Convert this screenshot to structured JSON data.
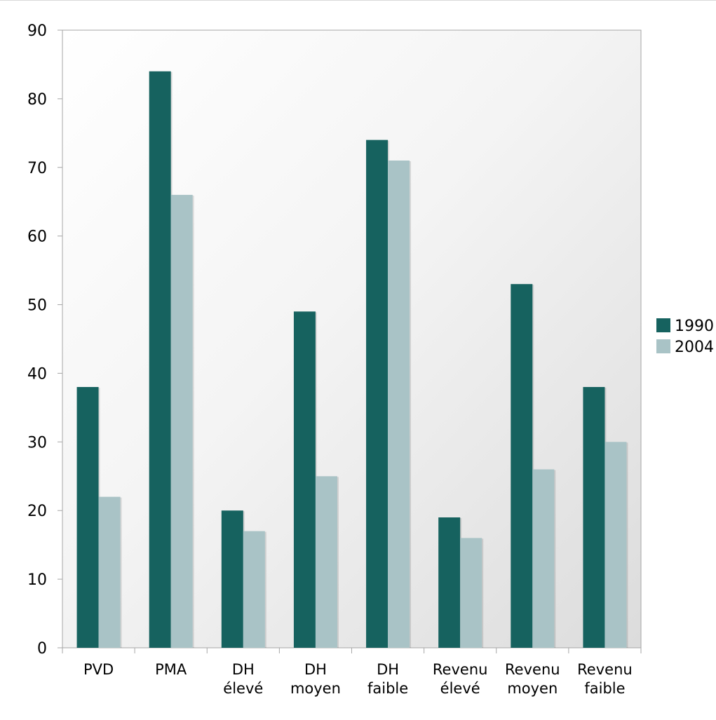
{
  "chart_data": {
    "type": "bar",
    "categories": [
      [
        "PVD"
      ],
      [
        "PMA"
      ],
      [
        "DH",
        "élevé"
      ],
      [
        "DH",
        "moyen"
      ],
      [
        "DH",
        "faible"
      ],
      [
        "Revenu",
        "élevé"
      ],
      [
        "Revenu",
        "moyen"
      ],
      [
        "Revenu",
        "faible"
      ]
    ],
    "series": [
      {
        "name": "1990",
        "color": "#16625f",
        "values": [
          38,
          84,
          20,
          49,
          74,
          19,
          53,
          38
        ]
      },
      {
        "name": "2004",
        "color": "#a9c3c6",
        "values": [
          22,
          66,
          17,
          25,
          71,
          16,
          26,
          30
        ]
      }
    ],
    "yticks": [
      0,
      10,
      20,
      30,
      40,
      50,
      60,
      70,
      80,
      90
    ],
    "ylim": [
      0,
      90
    ],
    "title": "",
    "xlabel": "",
    "ylabel": "",
    "grid": false,
    "legend_position": "right",
    "plot_background": "gradient-white-to-gray"
  }
}
